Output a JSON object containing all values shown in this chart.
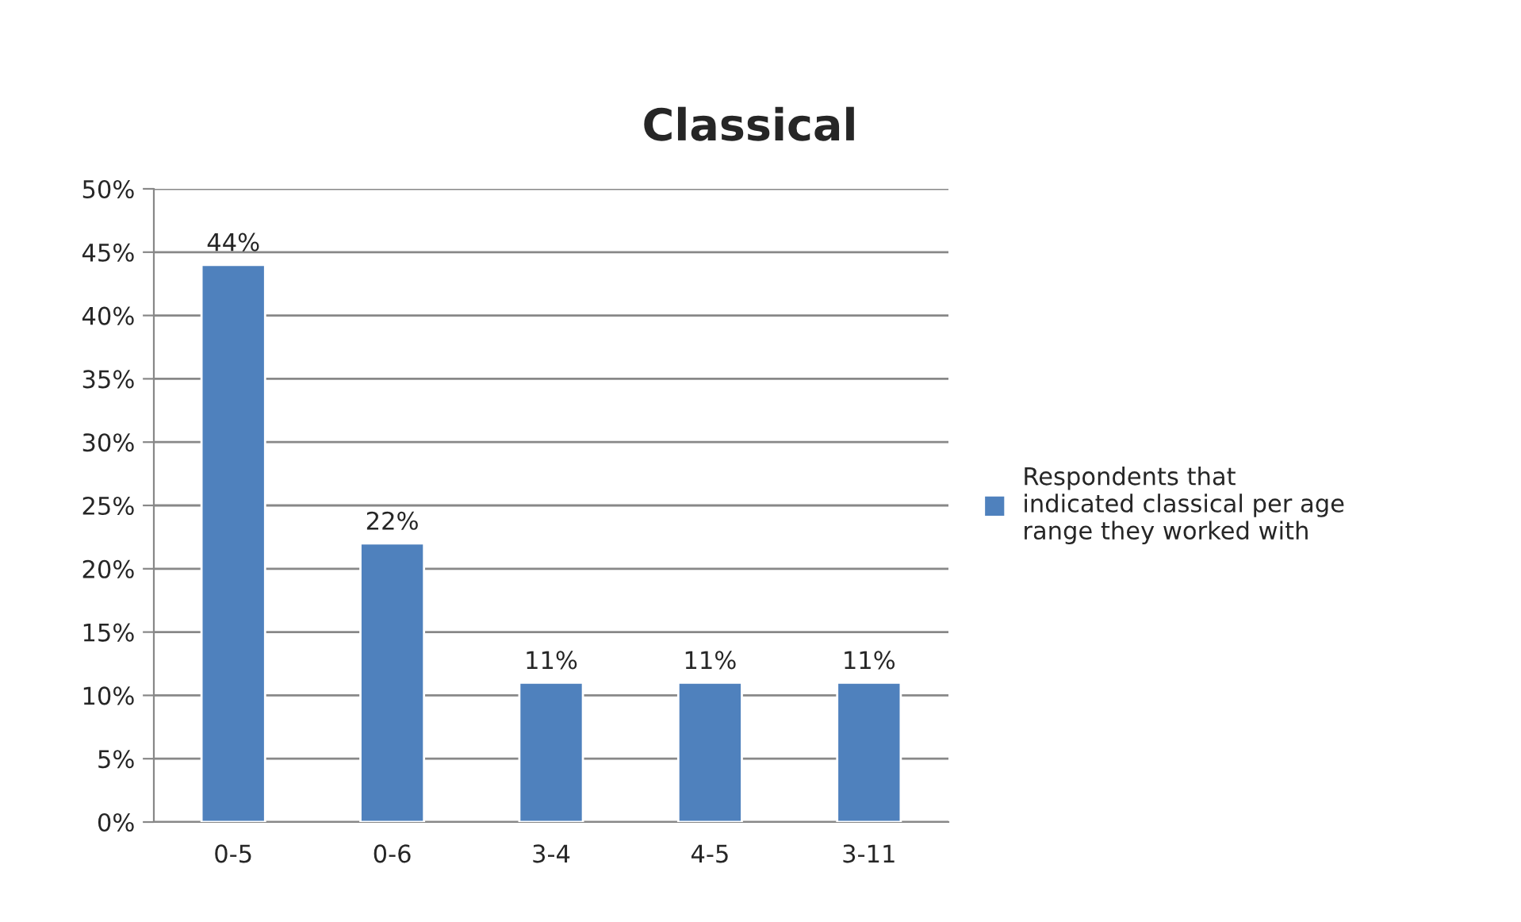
{
  "chart_data": {
    "type": "bar",
    "title": "Classical",
    "categories": [
      "0-5",
      "0-6",
      "3-4",
      "4-5",
      "3-11"
    ],
    "series": [
      {
        "name": "Respondents that\nindicated classical per age\nrange they worked with",
        "color": "#4f81bd",
        "values": [
          44,
          22,
          11,
          11,
          11
        ],
        "value_labels": [
          "44%",
          "22%",
          "11%",
          "11%",
          "11%"
        ]
      }
    ],
    "ylim": [
      0,
      50
    ],
    "yticks": [
      {
        "value": 0,
        "label": "0%"
      },
      {
        "value": 5,
        "label": "5%"
      },
      {
        "value": 10,
        "label": "10%"
      },
      {
        "value": 15,
        "label": "15%"
      },
      {
        "value": 20,
        "label": "20%"
      },
      {
        "value": 25,
        "label": "25%"
      },
      {
        "value": 30,
        "label": "30%"
      },
      {
        "value": 35,
        "label": "35%"
      },
      {
        "value": 40,
        "label": "40%"
      },
      {
        "value": 45,
        "label": "45%"
      },
      {
        "value": 50,
        "label": "50%"
      }
    ],
    "grid": "y",
    "legend": "right"
  }
}
